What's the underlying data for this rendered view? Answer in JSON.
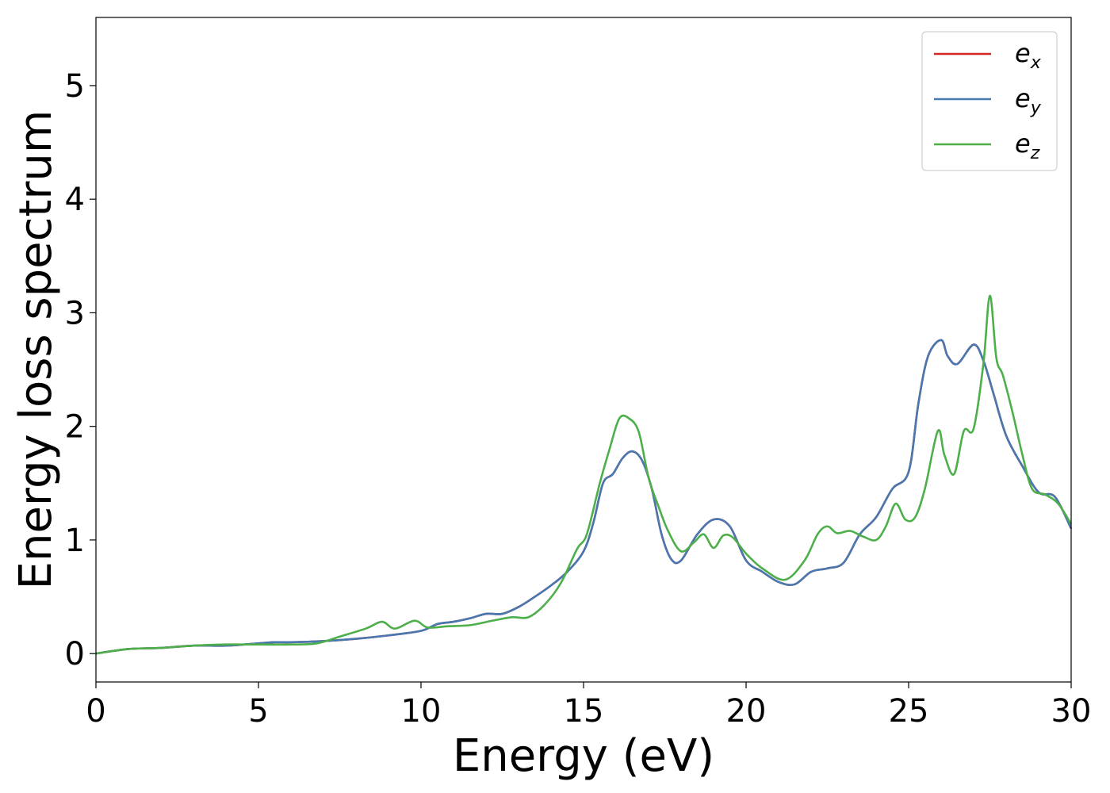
{
  "chart_data": {
    "type": "line",
    "xlabel": "Energy (eV)",
    "ylabel": "Energy loss spectrum",
    "xlim": [
      0,
      30
    ],
    "ylim": [
      -0.25,
      5.6
    ],
    "xticks": [
      0,
      5,
      10,
      15,
      20,
      25,
      30
    ],
    "yticks": [
      0,
      1,
      2,
      3,
      4,
      5
    ],
    "xtick_labels": [
      "0",
      "5",
      "10",
      "15",
      "20",
      "25",
      "30"
    ],
    "ytick_labels": [
      "0",
      "1",
      "2",
      "3",
      "4",
      "5"
    ],
    "grid": false,
    "legend_position": "top-right",
    "series": [
      {
        "name": "e_x",
        "label_main": "e",
        "label_sub": "x",
        "color": "#d62728",
        "x": [
          0,
          1,
          2,
          3,
          4,
          5,
          5.5,
          6,
          7,
          8,
          9,
          10,
          10.5,
          11,
          11.5,
          12,
          12.5,
          13,
          13.5,
          14,
          14.5,
          15,
          15.3,
          15.6,
          15.9,
          16.2,
          16.5,
          16.8,
          17.1,
          17.4,
          17.7,
          18.0,
          18.5,
          19.0,
          19.5,
          20.0,
          20.5,
          21.0,
          21.5,
          22.0,
          22.5,
          23.0,
          23.5,
          24.0,
          24.5,
          25.0,
          25.3,
          25.6,
          26.0,
          26.2,
          26.5,
          27.0,
          27.3,
          27.6,
          28.0,
          28.5,
          29.0,
          29.5,
          30.0
        ],
        "y": [
          0.0,
          0.04,
          0.05,
          0.07,
          0.07,
          0.09,
          0.1,
          0.1,
          0.11,
          0.13,
          0.16,
          0.2,
          0.26,
          0.28,
          0.31,
          0.35,
          0.35,
          0.41,
          0.5,
          0.6,
          0.72,
          0.9,
          1.15,
          1.5,
          1.58,
          1.72,
          1.78,
          1.7,
          1.45,
          1.05,
          0.83,
          0.82,
          1.05,
          1.18,
          1.12,
          0.82,
          0.72,
          0.63,
          0.61,
          0.72,
          0.75,
          0.8,
          1.05,
          1.2,
          1.45,
          1.6,
          2.2,
          2.62,
          2.76,
          2.62,
          2.55,
          2.72,
          2.58,
          2.3,
          1.92,
          1.65,
          1.42,
          1.38,
          1.1
        ]
      },
      {
        "name": "e_y",
        "label_main": "e",
        "label_sub": "y",
        "color": "#4878b0",
        "x": [
          0,
          1,
          2,
          3,
          4,
          5,
          5.5,
          6,
          7,
          8,
          9,
          10,
          10.5,
          11,
          11.5,
          12,
          12.5,
          13,
          13.5,
          14,
          14.5,
          15,
          15.3,
          15.6,
          15.9,
          16.2,
          16.5,
          16.8,
          17.1,
          17.4,
          17.7,
          18.0,
          18.5,
          19.0,
          19.5,
          20.0,
          20.5,
          21.0,
          21.5,
          22.0,
          22.5,
          23.0,
          23.5,
          24.0,
          24.5,
          25.0,
          25.3,
          25.6,
          26.0,
          26.2,
          26.5,
          27.0,
          27.3,
          27.6,
          28.0,
          28.5,
          29.0,
          29.5,
          30.0
        ],
        "y": [
          0.0,
          0.04,
          0.05,
          0.07,
          0.07,
          0.09,
          0.1,
          0.1,
          0.11,
          0.13,
          0.16,
          0.2,
          0.26,
          0.28,
          0.31,
          0.35,
          0.35,
          0.41,
          0.5,
          0.6,
          0.72,
          0.9,
          1.15,
          1.5,
          1.58,
          1.72,
          1.78,
          1.7,
          1.45,
          1.05,
          0.83,
          0.82,
          1.05,
          1.18,
          1.12,
          0.82,
          0.72,
          0.63,
          0.61,
          0.72,
          0.75,
          0.8,
          1.05,
          1.2,
          1.45,
          1.6,
          2.2,
          2.62,
          2.76,
          2.62,
          2.55,
          2.72,
          2.58,
          2.3,
          1.92,
          1.65,
          1.42,
          1.38,
          1.1
        ]
      },
      {
        "name": "e_z",
        "label_main": "e",
        "label_sub": "z",
        "color": "#4daf4a",
        "x": [
          0,
          1,
          2,
          3,
          4,
          5,
          6,
          6.8,
          7.5,
          8.3,
          8.8,
          9.2,
          9.8,
          10.2,
          10.8,
          11.5,
          12.2,
          12.8,
          13.3,
          13.8,
          14.3,
          14.8,
          15.1,
          15.5,
          15.8,
          16.1,
          16.4,
          16.7,
          17.0,
          17.3,
          17.6,
          18.0,
          18.4,
          18.7,
          19.0,
          19.3,
          19.6,
          20.0,
          20.5,
          21.2,
          21.8,
          22.2,
          22.5,
          22.8,
          23.2,
          23.6,
          24.0,
          24.3,
          24.6,
          24.9,
          25.2,
          25.5,
          25.9,
          26.1,
          26.4,
          26.7,
          27.0,
          27.3,
          27.5,
          27.7,
          27.9,
          28.2,
          28.5,
          28.8,
          29.2,
          29.6,
          30.0
        ],
        "y": [
          0.0,
          0.04,
          0.05,
          0.07,
          0.08,
          0.08,
          0.08,
          0.09,
          0.15,
          0.22,
          0.28,
          0.22,
          0.29,
          0.23,
          0.24,
          0.25,
          0.29,
          0.32,
          0.32,
          0.43,
          0.62,
          0.92,
          1.05,
          1.5,
          1.8,
          2.07,
          2.07,
          1.95,
          1.55,
          1.3,
          1.08,
          0.9,
          0.98,
          1.05,
          0.93,
          1.04,
          1.02,
          0.88,
          0.75,
          0.65,
          0.82,
          1.05,
          1.12,
          1.06,
          1.08,
          1.03,
          1.0,
          1.12,
          1.32,
          1.18,
          1.2,
          1.45,
          1.96,
          1.75,
          1.58,
          1.96,
          1.98,
          2.55,
          3.15,
          2.6,
          2.45,
          2.12,
          1.75,
          1.45,
          1.4,
          1.32,
          1.14
        ]
      }
    ]
  }
}
